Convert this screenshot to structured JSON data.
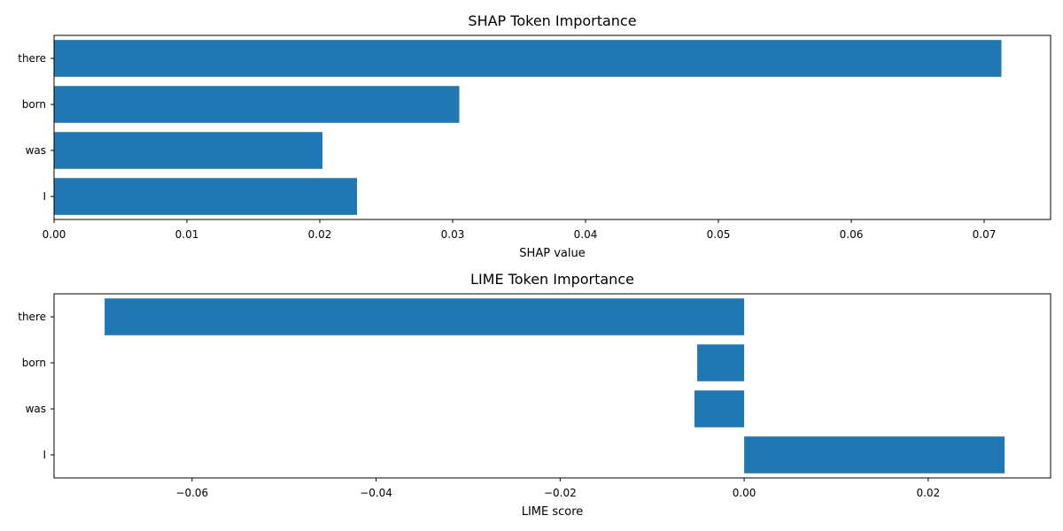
{
  "chart_data": [
    {
      "type": "bar",
      "orientation": "horizontal",
      "title": "SHAP Token Importance",
      "xlabel": "SHAP value",
      "ylabel": "",
      "categories": [
        "there",
        "born",
        "was",
        "I"
      ],
      "values": [
        0.0713,
        0.0305,
        0.0202,
        0.0228
      ],
      "xlim": [
        0.0,
        0.075
      ],
      "xticks": [
        0.0,
        0.01,
        0.02,
        0.03,
        0.04,
        0.05,
        0.06,
        0.07
      ],
      "xtick_labels": [
        "0.00",
        "0.01",
        "0.02",
        "0.03",
        "0.04",
        "0.05",
        "0.06",
        "0.07"
      ],
      "bar_color": "#1f77b4",
      "grid": false
    },
    {
      "type": "bar",
      "orientation": "horizontal",
      "title": "LIME Token Importance",
      "xlabel": "LIME score",
      "ylabel": "",
      "categories": [
        "there",
        "born",
        "was",
        "I"
      ],
      "values": [
        -0.0695,
        -0.0051,
        -0.0054,
        0.0283
      ],
      "xlim": [
        -0.075,
        0.0333
      ],
      "xticks": [
        -0.06,
        -0.04,
        -0.02,
        0.0,
        0.02
      ],
      "xtick_labels": [
        "−0.06",
        "−0.04",
        "−0.02",
        "0.00",
        "0.02"
      ],
      "bar_color": "#1f77b4",
      "grid": false
    }
  ]
}
